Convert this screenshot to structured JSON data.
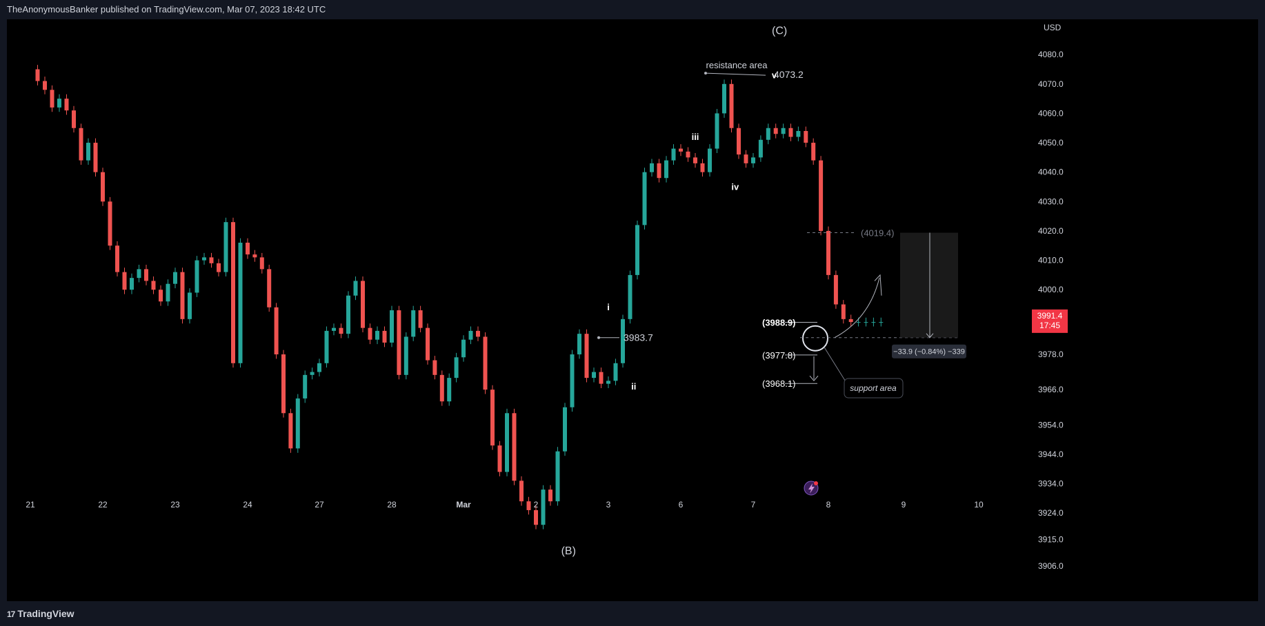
{
  "header": {
    "publisher_line": "TheAnonymousBanker published on TradingView.com, Mar 07, 2023 18:42 UTC"
  },
  "footer": {
    "brand": "TradingView",
    "brand_icon": "tradingview-logo-icon"
  },
  "colors": {
    "up": "#26a69a",
    "down": "#ef5350",
    "background": "#000000",
    "frame": "#131722",
    "text": "#d1d4dc"
  },
  "chart_data": {
    "type": "line",
    "currency": "USD",
    "ylim": [
      3902,
      4092
    ],
    "y_ticks": [
      "4080.0",
      "4070.0",
      "4060.0",
      "4050.0",
      "4040.0",
      "4030.0",
      "4020.0",
      "4010.0",
      "4000.0",
      "3978.0",
      "3966.0",
      "3954.0",
      "3944.0",
      "3934.0",
      "3924.0",
      "3915.0",
      "3906.0"
    ],
    "x_ticks": [
      "21",
      "22",
      "23",
      "24",
      "27",
      "28",
      "Mar",
      "2",
      "3",
      "6",
      "7",
      "8",
      "9",
      "10"
    ],
    "price_series": {
      "name": "",
      "x": [
        0,
        0.1,
        0.2,
        0.3,
        0.4,
        0.5,
        0.6,
        0.7,
        0.8,
        0.9,
        1,
        1.1,
        1.2,
        1.3,
        1.4,
        1.5,
        1.6,
        1.7,
        1.8,
        1.9,
        2,
        2.1,
        2.2,
        2.3,
        2.4,
        2.5,
        2.6,
        2.7,
        2.8,
        2.9,
        3,
        3.1,
        3.2,
        3.3,
        3.4,
        3.5,
        3.6,
        3.7,
        3.8,
        3.9,
        4,
        4.1,
        4.2,
        4.3,
        4.4,
        4.5,
        4.6,
        4.7,
        4.8,
        4.9,
        5,
        5.1,
        5.2,
        5.3,
        5.4,
        5.5,
        5.6,
        5.7,
        5.8,
        5.9,
        6,
        6.1,
        6.2,
        6.3,
        6.4,
        6.5,
        6.6,
        6.7,
        6.8,
        6.9,
        7,
        7.1,
        7.2,
        7.3,
        7.4,
        7.5,
        7.6,
        7.7,
        7.8,
        7.9,
        8,
        8.1,
        8.2,
        8.3,
        8.4,
        8.5,
        8.6,
        8.7,
        8.8,
        8.9,
        9,
        9.1,
        9.2,
        9.3,
        9.4,
        9.5,
        9.6,
        9.7,
        9.8,
        9.9,
        10,
        10.1,
        10.2,
        10.3,
        10.4,
        10.5,
        10.6,
        10.7,
        10.8,
        10.9,
        11,
        11.1,
        11.2,
        11.3,
        11.4,
        11.5,
        11.6,
        11.7
      ],
      "values": [
        4075,
        4071,
        4068,
        4062,
        4065,
        4061,
        4055,
        4044,
        4050,
        4040,
        4030,
        4015,
        4006,
        4000,
        4004,
        4007,
        4003,
        4000,
        3996,
        4002,
        4006,
        3990,
        3999,
        4010,
        4011,
        4009,
        4006,
        4023,
        3975,
        4016,
        4012,
        4011,
        4007,
        3994,
        3978,
        3958,
        3946,
        3963,
        3971,
        3972,
        3975,
        3986,
        3987,
        3985,
        3998,
        4003,
        3987,
        3983,
        3986,
        3982,
        3993,
        3971,
        3984,
        3993,
        3987,
        3976,
        3971,
        3962,
        3970,
        3977,
        3983,
        3986,
        3984,
        3966,
        3947,
        3938,
        3958,
        3935,
        3928,
        3925,
        3920,
        3932,
        3928,
        3945,
        3960,
        3978,
        3985,
        3970,
        3972,
        3968,
        3969,
        3975,
        3990,
        4005,
        4022,
        4040,
        4043,
        4038,
        4044,
        4048,
        4047,
        4045,
        4043,
        4040,
        4048,
        4060,
        4070,
        4055,
        4046,
        4043,
        4045,
        4051,
        4055,
        4053,
        4055,
        4052,
        4054,
        4050,
        4044,
        4020,
        4005,
        3995,
        3990,
        3989,
        3989,
        3989,
        3989,
        3989
      ],
      "x_index_note_removed": true
    },
    "wave_labels": [
      {
        "text": "(C)",
        "x": 10.35,
        "y": 4087
      },
      {
        "text": "v",
        "x": 10.28,
        "y": 4072
      },
      {
        "text": "iii",
        "x": 9.2,
        "y": 4051
      },
      {
        "text": "iv",
        "x": 9.75,
        "y": 4034
      },
      {
        "text": "i",
        "x": 8.0,
        "y": 3993
      },
      {
        "text": "ii",
        "x": 8.35,
        "y": 3966
      },
      {
        "text": "(B)",
        "x": 7.45,
        "y": 3910
      }
    ],
    "levels": [
      {
        "label": "4073.2",
        "value": 4073.2
      },
      {
        "label": "3983.7",
        "value": 3983.7
      },
      {
        "label": "(4019.4)",
        "value": 4019.4
      },
      {
        "label": "(3988.9)",
        "value": 3988.9
      },
      {
        "label": "(3977.8)",
        "value": 3977.8
      },
      {
        "label": "(3968.1)",
        "value": 3968.1
      }
    ],
    "annotations": {
      "resistance": "resistance area",
      "support": "support area",
      "measure": "−33.9 (−0.84%) −339"
    },
    "last_price": {
      "value": "3991.4",
      "countdown": "17:45"
    }
  }
}
